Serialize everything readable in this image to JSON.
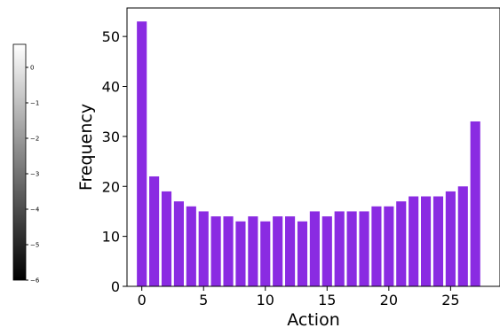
{
  "chart_data": [
    {
      "type": "bar",
      "xlabel": "Action",
      "ylabel": "Frequency",
      "title": "",
      "x": [
        0,
        1,
        2,
        3,
        4,
        5,
        6,
        7,
        8,
        9,
        10,
        11,
        12,
        13,
        14,
        15,
        16,
        17,
        18,
        19,
        20,
        21,
        22,
        23,
        24,
        25,
        26,
        27
      ],
      "values": [
        53,
        22,
        19,
        17,
        16,
        15,
        14,
        14,
        13,
        14,
        13,
        14,
        14,
        13,
        15,
        14,
        15,
        15,
        15,
        16,
        16,
        17,
        18,
        18,
        18,
        19,
        20,
        33
      ],
      "xlim": [
        -1.2,
        29
      ],
      "ylim": [
        0,
        55.7
      ],
      "xticks": [
        0,
        5,
        10,
        15,
        20,
        25
      ],
      "yticks": [
        0,
        10,
        20,
        30,
        40,
        50
      ],
      "color": "#8a2be2",
      "grid": false
    },
    {
      "type": "heatmap",
      "description_role": "colorbar",
      "colormap": [
        "#000000",
        "#ffffff"
      ],
      "range": [
        -6,
        0.65
      ],
      "ticks": [
        0,
        -1,
        -2,
        -3,
        -4,
        -5,
        -6
      ]
    }
  ]
}
